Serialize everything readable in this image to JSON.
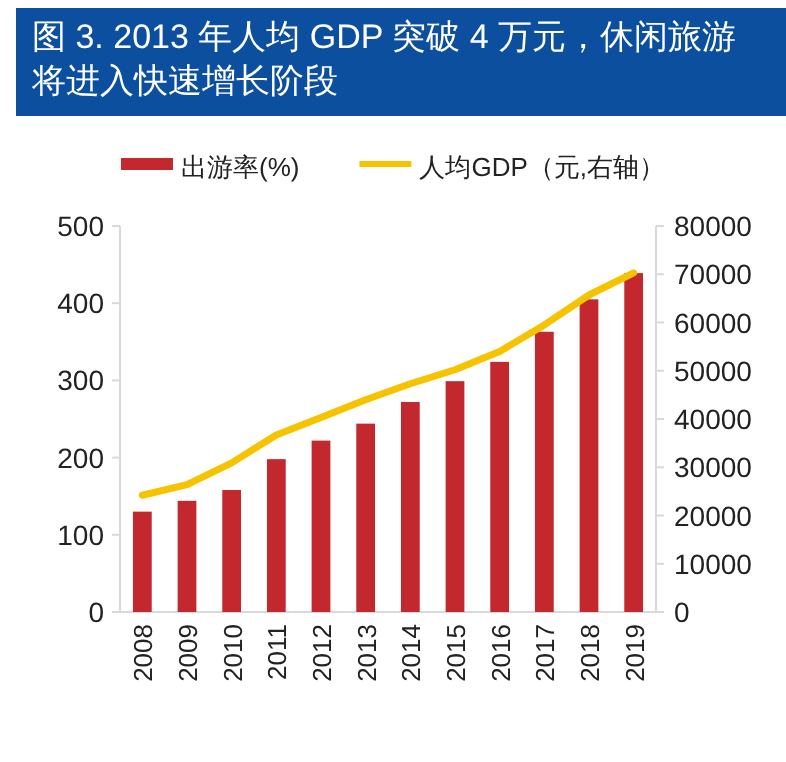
{
  "chart_data": {
    "type": "bar",
    "title": "图 3. 2013 年人均 GDP 突破 4 万元，休闲旅游将进入快速增长阶段",
    "categories": [
      "2008",
      "2009",
      "2010",
      "2011",
      "2012",
      "2013",
      "2014",
      "2015",
      "2016",
      "2017",
      "2018",
      "2019"
    ],
    "series": [
      {
        "name": "出游率(%)",
        "color": "#c3282f",
        "values": [
          130,
          144,
          158,
          198,
          222,
          244,
          272,
          299,
          324,
          363,
          405,
          439
        ]
      },
      {
        "name": "人均GDP（元,右轴）",
        "type": "line",
        "axis": "y2",
        "color": "#f7c300",
        "values": [
          24200,
          26400,
          30900,
          36700,
          40300,
          44000,
          47300,
          50200,
          54000,
          59500,
          65700,
          70300
        ]
      }
    ],
    "ylim": [
      0,
      500
    ],
    "yticks": [
      0,
      100,
      200,
      300,
      400,
      500
    ],
    "y2lim": [
      0,
      80000
    ],
    "y2ticks": [
      0,
      10000,
      20000,
      30000,
      40000,
      50000,
      60000,
      70000,
      80000
    ],
    "legend": "top",
    "grid": false
  }
}
